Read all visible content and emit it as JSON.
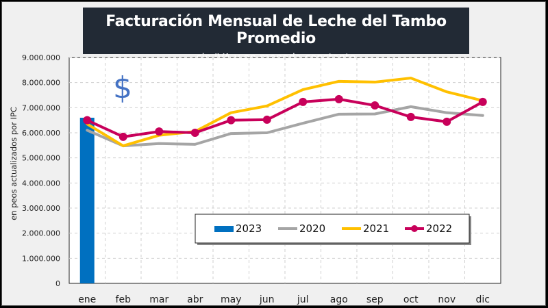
{
  "header": {
    "title": "Facturación Mensual de Leche del Tambo Promedio",
    "subtitle": "- sin IVA y en moneda constante -"
  },
  "decoration": {
    "symbol": "$",
    "symbol_name": "dollar-sign-icon",
    "symbol_color": "#4472c4"
  },
  "chart_data": {
    "type": "line",
    "title": "Facturación Mensual de Leche del Tambo Promedio",
    "subtitle": "- sin IVA y en moneda constante -",
    "xlabel": "",
    "ylabel": "en peos actualizados por IPC",
    "ylim": [
      0,
      9000000
    ],
    "yticks": [
      0,
      1000000,
      2000000,
      3000000,
      4000000,
      5000000,
      6000000,
      7000000,
      8000000,
      9000000
    ],
    "ytick_labels": [
      "0",
      "1.000.000",
      "2.000.000",
      "3.000.000",
      "4.000.000",
      "5.000.000",
      "6.000.000",
      "7.000.000",
      "8.000.000",
      "9.000.000"
    ],
    "categories": [
      "ene",
      "feb",
      "mar",
      "abr",
      "may",
      "jun",
      "jul",
      "ago",
      "sep",
      "oct",
      "nov",
      "dic"
    ],
    "grid": true,
    "legend_position": "bottom-center",
    "series": [
      {
        "name": "2023",
        "kind": "bar",
        "color": "#0070c0",
        "values": [
          6600000,
          null,
          null,
          null,
          null,
          null,
          null,
          null,
          null,
          null,
          null,
          null
        ]
      },
      {
        "name": "2020",
        "kind": "line",
        "color": "#a5a5a5",
        "markers": false,
        "values": [
          6100000,
          5480000,
          5570000,
          5540000,
          5970000,
          6000000,
          6380000,
          6740000,
          6750000,
          7040000,
          6800000,
          6690000
        ]
      },
      {
        "name": "2021",
        "kind": "line",
        "color": "#ffc000",
        "markers": false,
        "values": [
          6350000,
          5480000,
          5900000,
          6050000,
          6800000,
          7070000,
          7720000,
          8050000,
          8020000,
          8180000,
          7630000,
          7280000
        ]
      },
      {
        "name": "2022",
        "kind": "line",
        "color": "#c8005a",
        "markers": true,
        "values": [
          6500000,
          5840000,
          6050000,
          6000000,
          6500000,
          6520000,
          7230000,
          7340000,
          7090000,
          6630000,
          6440000,
          7230000
        ]
      }
    ]
  }
}
